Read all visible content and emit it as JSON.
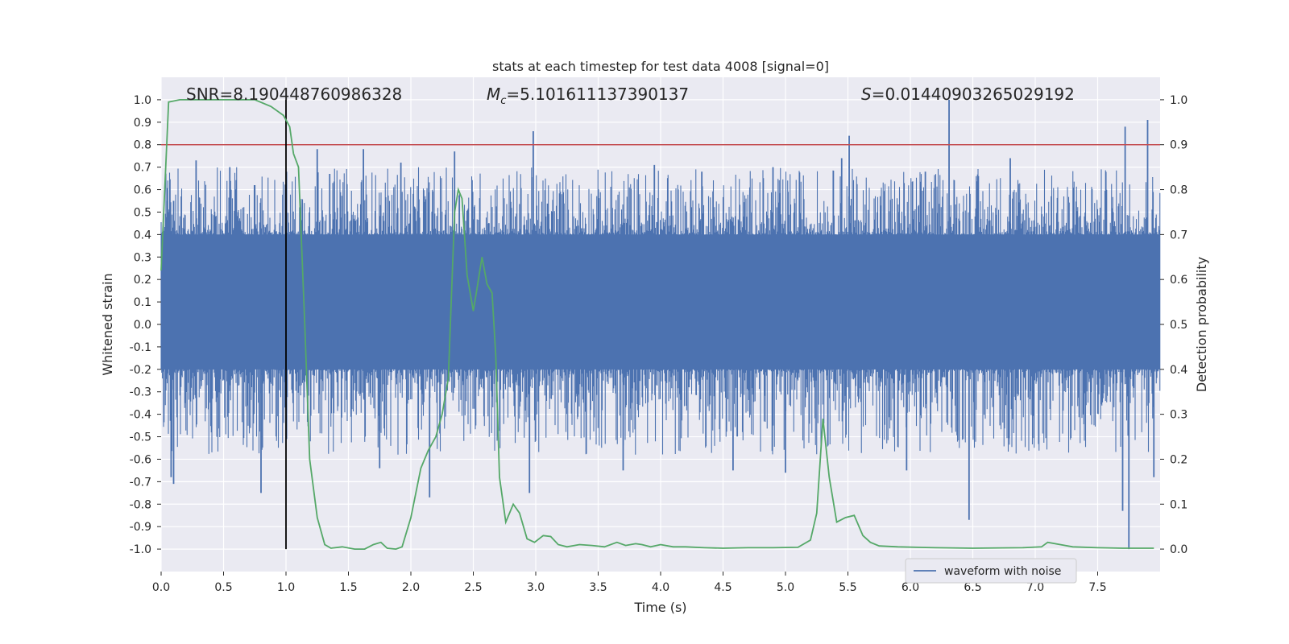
{
  "chart_data": {
    "type": "line",
    "title": "stats at each timestep for test data 4008 [signal=0]",
    "xlabel": "Time (s)",
    "ylabel": "Whitened strain",
    "y2label": "Detection probability",
    "xlim": [
      0,
      8
    ],
    "ylim": [
      -1.1,
      1.1
    ],
    "y2lim": [
      -0.05,
      1.05
    ],
    "xticks": [
      "0.0",
      "0.5",
      "1.0",
      "1.5",
      "2.0",
      "2.5",
      "3.0",
      "3.5",
      "4.0",
      "4.5",
      "5.0",
      "5.5",
      "6.0",
      "6.5",
      "7.0",
      "7.5"
    ],
    "yticks": [
      "1.0",
      "0.9",
      "0.8",
      "0.7",
      "0.6",
      "0.5",
      "0.4",
      "0.3",
      "0.2",
      "0.1",
      "0.0",
      "-0.1",
      "-0.2",
      "-0.3",
      "-0.4",
      "-0.5",
      "-0.6",
      "-0.7",
      "-0.8",
      "-0.9",
      "-1.0"
    ],
    "y2ticks": [
      "1.0",
      "0.9",
      "0.8",
      "0.7",
      "0.6",
      "0.5",
      "0.4",
      "0.3",
      "0.2",
      "0.1",
      "0.0"
    ],
    "grid": true,
    "legend": {
      "position": "lower-right",
      "entries": [
        "waveform with noise"
      ]
    },
    "annotations": {
      "snr_text": "SNR=8.190448760986328",
      "mc_prefix": "M",
      "mc_sub": "c",
      "mc_value": "=5.101611137390137",
      "s_prefix": "S",
      "s_value": "=0.01440903265029192"
    },
    "threshold": {
      "axis": "y2",
      "value": 0.9,
      "color": "#c44e52"
    },
    "vline": {
      "x": 1.0,
      "y_from": -1.0,
      "y_to": 1.0,
      "color": "#000000"
    },
    "colors": {
      "waveform": "#4c72b0",
      "probability": "#55a868",
      "background": "#eaeaf2",
      "grid": "#ffffff"
    },
    "series": [
      {
        "name": "waveform with noise",
        "axis": "y1",
        "kind": "noise-envelope",
        "color": "#4c72b0",
        "dense_band": [
          -0.2,
          0.4
        ],
        "spikes": [
          {
            "x": 0.05,
            "y": 0.55
          },
          {
            "x": 0.1,
            "y": 0.55
          },
          {
            "x": 0.28,
            "y": 0.73
          },
          {
            "x": 0.55,
            "y": 0.7
          },
          {
            "x": 0.75,
            "y": 0.62
          },
          {
            "x": 1.25,
            "y": 0.78
          },
          {
            "x": 1.35,
            "y": 0.67
          },
          {
            "x": 1.62,
            "y": 0.78
          },
          {
            "x": 1.92,
            "y": 0.72
          },
          {
            "x": 2.35,
            "y": 0.77
          },
          {
            "x": 2.98,
            "y": 0.86
          },
          {
            "x": 3.95,
            "y": 0.71
          },
          {
            "x": 4.33,
            "y": 0.68
          },
          {
            "x": 4.9,
            "y": 0.7
          },
          {
            "x": 5.51,
            "y": 0.84
          },
          {
            "x": 5.45,
            "y": 0.74
          },
          {
            "x": 6.31,
            "y": 1.0
          },
          {
            "x": 6.12,
            "y": 0.68
          },
          {
            "x": 6.8,
            "y": 0.74
          },
          {
            "x": 7.72,
            "y": 0.88
          },
          {
            "x": 7.9,
            "y": 0.91
          },
          {
            "x": 0.08,
            "y": -0.68
          },
          {
            "x": 0.1,
            "y": -0.71
          },
          {
            "x": 0.8,
            "y": -0.75
          },
          {
            "x": 2.15,
            "y": -0.77
          },
          {
            "x": 2.95,
            "y": -0.75
          },
          {
            "x": 3.7,
            "y": -0.65
          },
          {
            "x": 5.0,
            "y": -0.66
          },
          {
            "x": 6.47,
            "y": -0.87
          },
          {
            "x": 7.7,
            "y": -0.83
          },
          {
            "x": 7.75,
            "y": -1.0
          },
          {
            "x": 7.95,
            "y": -0.68
          },
          {
            "x": 4.58,
            "y": -0.65
          },
          {
            "x": 5.97,
            "y": -0.65
          },
          {
            "x": 1.75,
            "y": -0.64
          }
        ]
      },
      {
        "name": "detection probability",
        "axis": "y2",
        "color": "#55a868",
        "x": [
          0.0,
          0.06,
          0.15,
          0.3,
          0.5,
          0.75,
          0.88,
          0.98,
          1.03,
          1.06,
          1.1,
          1.15,
          1.19,
          1.25,
          1.31,
          1.36,
          1.45,
          1.55,
          1.63,
          1.7,
          1.76,
          1.81,
          1.88,
          1.93,
          2.0,
          2.08,
          2.14,
          2.2,
          2.25,
          2.3,
          2.35,
          2.38,
          2.41,
          2.45,
          2.5,
          2.53,
          2.57,
          2.61,
          2.65,
          2.68,
          2.71,
          2.76,
          2.82,
          2.87,
          2.93,
          2.99,
          3.06,
          3.12,
          3.18,
          3.25,
          3.35,
          3.45,
          3.55,
          3.65,
          3.72,
          3.8,
          3.85,
          3.92,
          4.0,
          4.1,
          4.2,
          4.35,
          4.5,
          4.7,
          4.9,
          5.1,
          5.2,
          5.25,
          5.3,
          5.35,
          5.41,
          5.48,
          5.55,
          5.62,
          5.68,
          5.75,
          5.9,
          6.2,
          6.5,
          6.9,
          7.05,
          7.1,
          7.2,
          7.3,
          7.5,
          7.7,
          7.95
        ],
        "y": [
          0.62,
          0.995,
          1.0,
          1.0,
          1.0,
          1.0,
          0.985,
          0.965,
          0.94,
          0.88,
          0.85,
          0.5,
          0.2,
          0.07,
          0.01,
          0.002,
          0.005,
          0.0,
          0.0,
          0.01,
          0.015,
          0.002,
          0.0,
          0.005,
          0.07,
          0.18,
          0.22,
          0.25,
          0.3,
          0.38,
          0.75,
          0.8,
          0.78,
          0.61,
          0.53,
          0.58,
          0.65,
          0.59,
          0.57,
          0.43,
          0.16,
          0.06,
          0.1,
          0.08,
          0.023,
          0.015,
          0.03,
          0.028,
          0.01,
          0.005,
          0.01,
          0.008,
          0.005,
          0.015,
          0.008,
          0.012,
          0.01,
          0.005,
          0.01,
          0.005,
          0.005,
          0.003,
          0.002,
          0.003,
          0.003,
          0.004,
          0.02,
          0.08,
          0.29,
          0.16,
          0.06,
          0.07,
          0.075,
          0.03,
          0.015,
          0.007,
          0.005,
          0.003,
          0.002,
          0.003,
          0.005,
          0.015,
          0.01,
          0.005,
          0.003,
          0.002,
          0.002
        ]
      }
    ]
  }
}
